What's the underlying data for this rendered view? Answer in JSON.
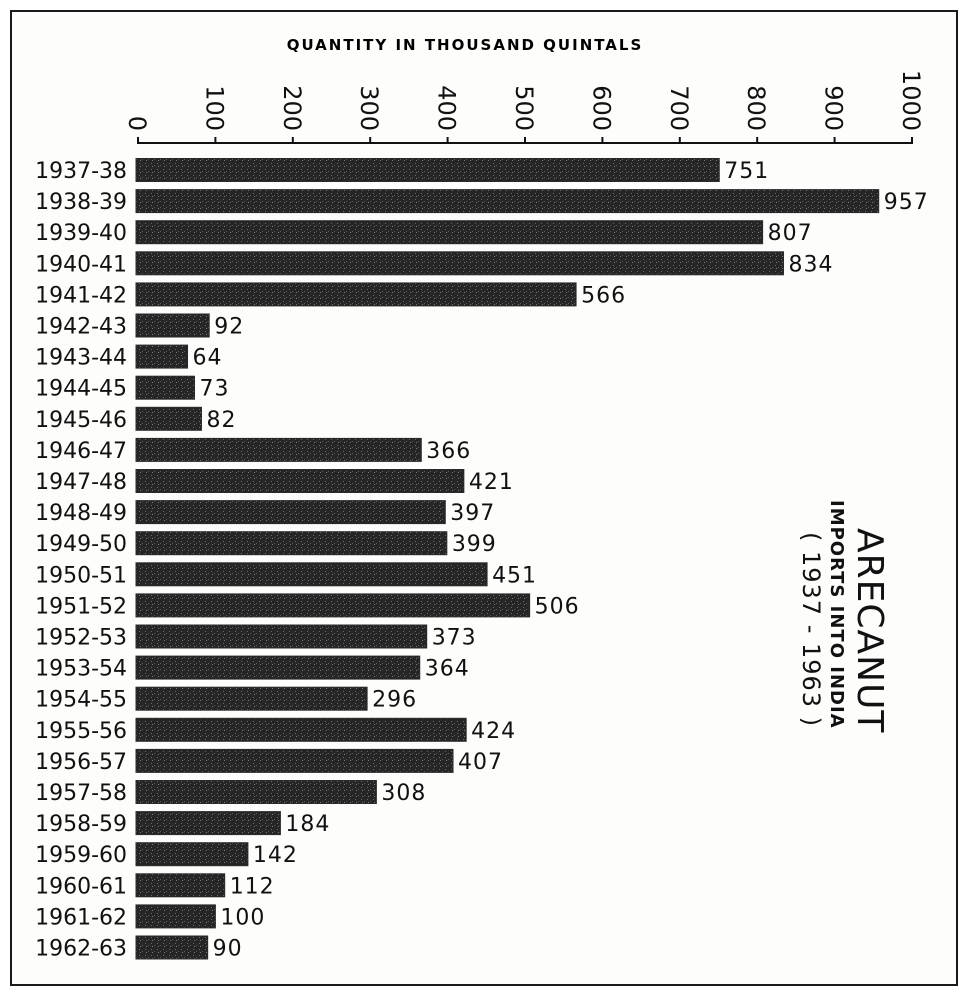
{
  "chart_data": {
    "type": "bar",
    "orientation": "horizontal",
    "title": "ARECANUT",
    "subtitle": "IMPORTS INTO INDIA",
    "period": "( 1937 - 1963 )",
    "xlabel": "QUANTITY IN THOUSAND QUINTALS",
    "ylabel": "",
    "xlim": [
      0,
      1000
    ],
    "xticks": [
      "0",
      "100",
      "200",
      "300",
      "400",
      "500",
      "600",
      "700",
      "800",
      "900",
      "1000"
    ],
    "grid": false,
    "legend": "none",
    "categories": [
      "1937-38",
      "1938-39",
      "1939-40",
      "1940-41",
      "1941-42",
      "1942-43",
      "1943-44",
      "1944-45",
      "1945-46",
      "1946-47",
      "1947-48",
      "1948-49",
      "1949-50",
      "1950-51",
      "1951-52",
      "1952-53",
      "1953-54",
      "1954-55",
      "1955-56",
      "1956-57",
      "1957-58",
      "1958-59",
      "1959-60",
      "1960-61",
      "1961-62",
      "1962-63"
    ],
    "values": [
      751,
      957,
      807,
      834,
      566,
      92,
      64,
      73,
      82,
      366,
      421,
      397,
      399,
      451,
      506,
      373,
      364,
      296,
      424,
      407,
      308,
      184,
      142,
      112,
      100,
      90
    ],
    "bar_color": "#2a2a2a"
  }
}
